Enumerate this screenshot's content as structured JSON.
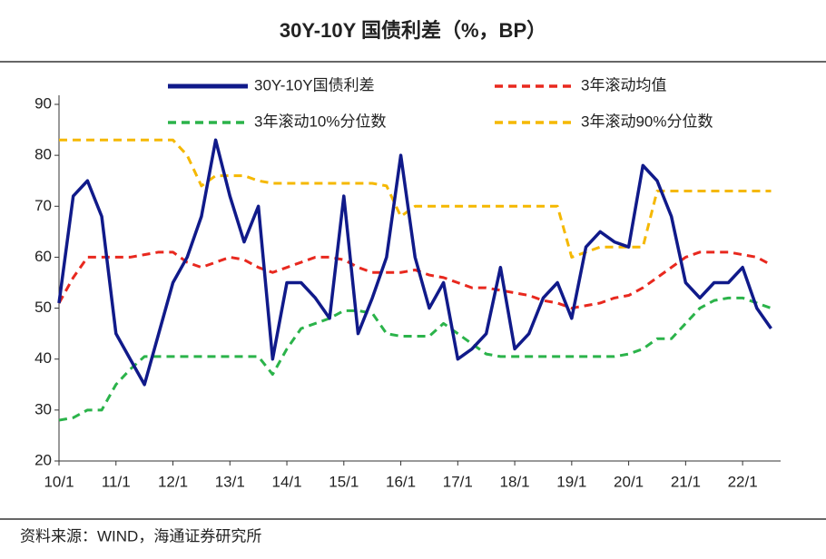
{
  "chart_data": {
    "type": "line",
    "title": "30Y-10Y 国债利差（%，BP）",
    "source": "资料来源：WIND，海通证券研究所",
    "categories": [
      "10/1",
      null,
      null,
      null,
      "11/1",
      null,
      null,
      null,
      "12/1",
      null,
      null,
      null,
      "13/1",
      null,
      null,
      null,
      "14/1",
      null,
      null,
      null,
      "15/1",
      null,
      null,
      null,
      "16/1",
      null,
      null,
      null,
      "17/1",
      null,
      null,
      null,
      "18/1",
      null,
      null,
      null,
      "19/1",
      null,
      null,
      null,
      "20/1",
      null,
      null,
      null,
      "21/1",
      null,
      null,
      null,
      "22/1",
      null,
      null
    ],
    "series": [
      {
        "name": "30Y-10Y国债利差",
        "color": "#101a8a",
        "style": "solid",
        "values": [
          51,
          72,
          75,
          68,
          45,
          40,
          35,
          45,
          55,
          60,
          68,
          83,
          72,
          63,
          70,
          40,
          55,
          55,
          52,
          48,
          72,
          45,
          52,
          60,
          80,
          60,
          50,
          55,
          40,
          42,
          45,
          58,
          42,
          45,
          52,
          55,
          48,
          62,
          65,
          63,
          62,
          78,
          75,
          68,
          55,
          52,
          55,
          55,
          58,
          50,
          46
        ]
      },
      {
        "name": "3年滚动均值",
        "color": "#e8281e",
        "style": "dashed",
        "values": [
          51,
          56,
          60,
          60,
          60,
          60,
          60.5,
          61,
          61,
          59,
          58,
          59,
          60,
          59.5,
          58,
          57,
          58,
          59,
          60,
          60,
          59.5,
          58,
          57,
          57,
          57,
          57.5,
          56.5,
          56,
          55,
          54,
          54,
          53.5,
          53,
          52.5,
          51.5,
          51,
          50,
          50.5,
          51,
          52,
          52.5,
          54,
          56,
          58,
          60,
          61,
          61,
          61,
          60.5,
          60,
          58.5
        ]
      },
      {
        "name": "3年滚动10%分位数",
        "color": "#2bb34a",
        "style": "dashed",
        "values": [
          28,
          28.5,
          30,
          30,
          35,
          38,
          40.5,
          40.5,
          40.5,
          40.5,
          40.5,
          40.5,
          40.5,
          40.5,
          40.5,
          37,
          42,
          46,
          47,
          48,
          49.5,
          49.5,
          49,
          45,
          44.5,
          44.5,
          44.5,
          47,
          45,
          43,
          41,
          40.5,
          40.5,
          40.5,
          40.5,
          40.5,
          40.5,
          40.5,
          40.5,
          40.5,
          41,
          42,
          44,
          44,
          47,
          50,
          51.5,
          52,
          52,
          51,
          50
        ]
      },
      {
        "name": "3年滚动90%分位数",
        "color": "#f5b800",
        "style": "dashed",
        "values": [
          83,
          83,
          83,
          83,
          83,
          83,
          83,
          83,
          83,
          80,
          74,
          76,
          76,
          76,
          75,
          74.5,
          74.5,
          74.5,
          74.5,
          74.5,
          74.5,
          74.5,
          74.5,
          74,
          68,
          70,
          70,
          70,
          70,
          70,
          70,
          70,
          70,
          70,
          70,
          70,
          60,
          61,
          62,
          62,
          62,
          62,
          73,
          73,
          73,
          73,
          73,
          73,
          73,
          73,
          73
        ]
      }
    ],
    "ylim": [
      20,
      90
    ],
    "yticks": [
      20,
      30,
      40,
      50,
      60,
      70,
      80,
      90
    ],
    "legend": "top"
  }
}
